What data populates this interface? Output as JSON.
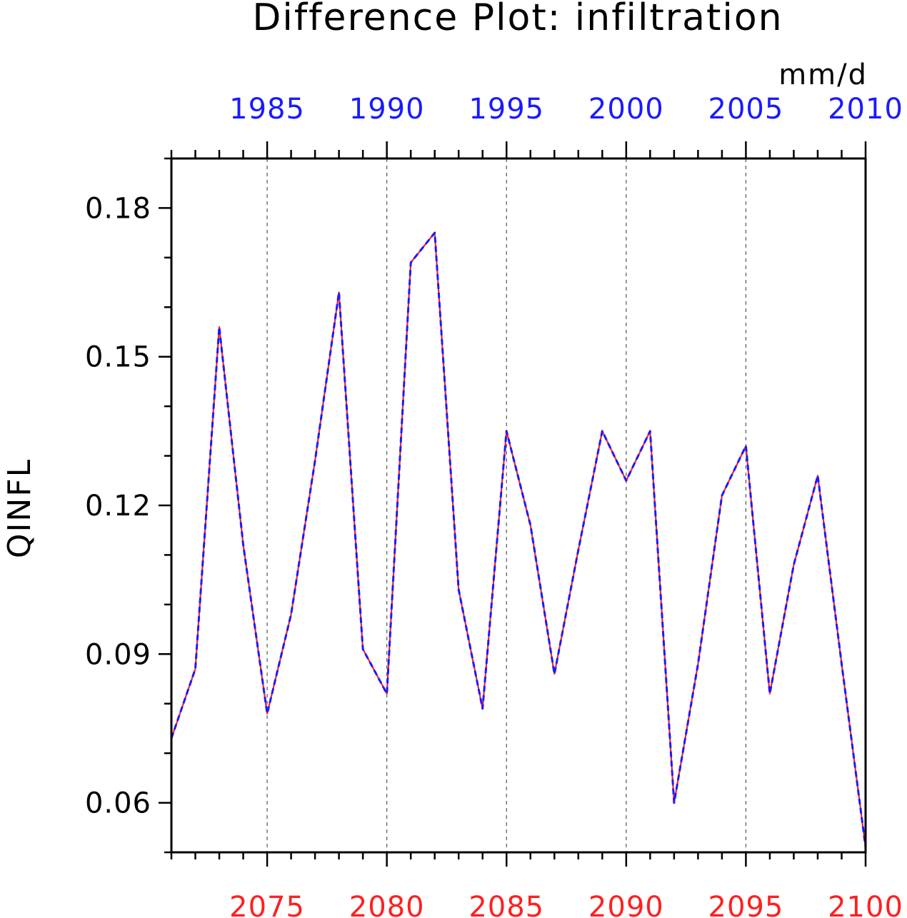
{
  "chart_data": {
    "type": "line",
    "title": "Difference Plot: infiltration",
    "units": "mm/d",
    "ylabel": "QINFL",
    "ylim": [
      0.05,
      0.19
    ],
    "y_ticks": [
      "0.06",
      "0.09",
      "0.12",
      "0.15",
      "0.18"
    ],
    "y_minor_step": 0.01,
    "grid": "vertical dashed at labelled years",
    "x_bottom": {
      "color": "#ff2020",
      "range": [
        2071,
        2100
      ],
      "tick_values": [
        2075,
        2080,
        2085,
        2090,
        2095,
        2100
      ],
      "tick_labels": [
        "2075",
        "2080",
        "2085",
        "2090",
        "2095",
        "2100"
      ]
    },
    "x_top": {
      "color": "#1a1aff",
      "range": [
        1981,
        2010
      ],
      "tick_values": [
        1985,
        1990,
        1995,
        2000,
        2005,
        2010
      ],
      "tick_labels": [
        "1985",
        "1990",
        "1995",
        "2000",
        "2005",
        "2010"
      ]
    },
    "x": [
      2071,
      2072,
      2073,
      2074,
      2075,
      2076,
      2077,
      2078,
      2079,
      2080,
      2081,
      2082,
      2083,
      2084,
      2085,
      2086,
      2087,
      2088,
      2089,
      2090,
      2091,
      2092,
      2093,
      2094,
      2095,
      2096,
      2097,
      2098,
      2099,
      2100
    ],
    "series": [
      {
        "color": "#ff2020",
        "style": "solid",
        "values": [
          0.073,
          0.087,
          0.156,
          0.112,
          0.078,
          0.098,
          0.129,
          0.163,
          0.091,
          0.082,
          0.169,
          0.175,
          0.103,
          0.079,
          0.135,
          0.116,
          0.086,
          0.111,
          0.135,
          0.125,
          0.135,
          0.06,
          0.088,
          0.122,
          0.132,
          0.082,
          0.108,
          0.126,
          0.088,
          0.051
        ]
      },
      {
        "color": "#1a1aff",
        "style": "dashed",
        "values": [
          0.073,
          0.087,
          0.156,
          0.112,
          0.078,
          0.098,
          0.129,
          0.163,
          0.091,
          0.082,
          0.169,
          0.175,
          0.103,
          0.079,
          0.135,
          0.116,
          0.086,
          0.111,
          0.135,
          0.125,
          0.135,
          0.06,
          0.088,
          0.122,
          0.132,
          0.082,
          0.108,
          0.126,
          0.088,
          0.051
        ]
      }
    ]
  }
}
